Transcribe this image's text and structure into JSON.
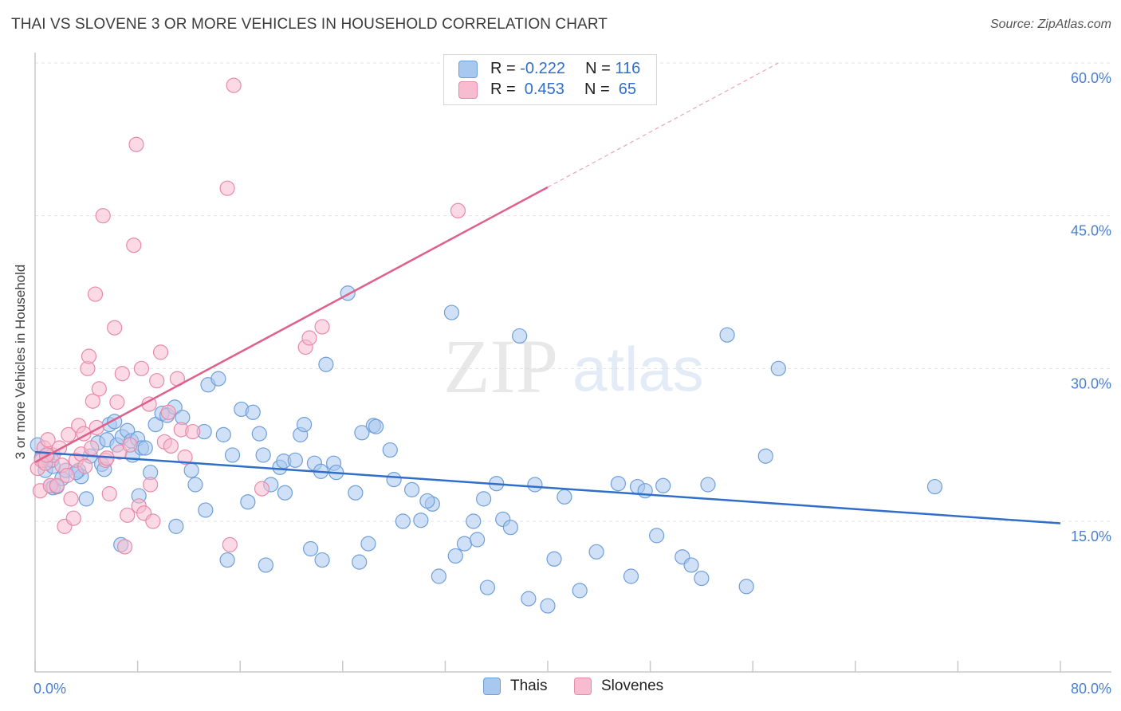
{
  "header": {
    "title": "THAI VS SLOVENE 3 OR MORE VEHICLES IN HOUSEHOLD CORRELATION CHART",
    "source": "Source: ZipAtlas.com"
  },
  "watermark": {
    "zip": "ZIP",
    "atlas": "atlas"
  },
  "legend": {
    "rows": [
      {
        "r_label": "R =",
        "r_value": "-0.222",
        "n_label": "N =",
        "n_value": "116",
        "color": "#a9c8f0",
        "border": "#6f9fd8"
      },
      {
        "r_label": "R =",
        "r_value": " 0.453",
        "n_label": "N =",
        "n_value": " 65",
        "color": "#f7bcd0",
        "border": "#e88aa8"
      }
    ]
  },
  "bottom_legend": {
    "items": [
      {
        "label": "Thais"
      },
      {
        "label": "Slovenes"
      }
    ]
  },
  "colors": {
    "thai_fill": "#a9c8f0",
    "thai_stroke": "#6f9fd8",
    "thai_line": "#2f6fc9",
    "slovene_fill": "#f7bcd0",
    "slovene_stroke": "#e88aa8",
    "slovene_line": "#e0608a",
    "tick_text": "#4a7fd0"
  },
  "chart_data": {
    "type": "scatter",
    "title": "THAI VS SLOVENE 3 OR MORE VEHICLES IN HOUSEHOLD CORRELATION CHART",
    "xlabel": "",
    "ylabel": "3 or more Vehicles in Household",
    "xlim": [
      0,
      80
    ],
    "ylim": [
      0,
      63
    ],
    "x_tick_labels": [
      "0.0%",
      "80.0%"
    ],
    "y_ticks": [
      15,
      30,
      45,
      60
    ],
    "y_tick_labels": [
      "15.0%",
      "30.0%",
      "45.0%",
      "60.0%"
    ],
    "grid": true,
    "legend_position": "top-center",
    "series": [
      {
        "name": "Thais",
        "R": -0.222,
        "N": 116,
        "trend": {
          "x": [
            0,
            80
          ],
          "y": [
            21.8,
            14.8
          ]
        },
        "points": [
          [
            0.2,
            22.5
          ],
          [
            0.5,
            21.2
          ],
          [
            0.8,
            20.0
          ],
          [
            1.0,
            21.5
          ],
          [
            1.2,
            18.5
          ],
          [
            1.4,
            18.3
          ],
          [
            1.7,
            18.4
          ],
          [
            2.1,
            19.2
          ],
          [
            2.4,
            20.0
          ],
          [
            3.4,
            20.0
          ],
          [
            3.6,
            19.4
          ],
          [
            4.0,
            17.2
          ],
          [
            4.3,
            21.4
          ],
          [
            4.9,
            22.7
          ],
          [
            5.2,
            20.6
          ],
          [
            5.4,
            20.1
          ],
          [
            5.6,
            23.0
          ],
          [
            5.8,
            24.5
          ],
          [
            6.2,
            24.8
          ],
          [
            6.4,
            22.5
          ],
          [
            6.8,
            23.3
          ],
          [
            7.2,
            23.9
          ],
          [
            7.5,
            22.9
          ],
          [
            7.6,
            21.5
          ],
          [
            8.0,
            23.1
          ],
          [
            8.3,
            22.2
          ],
          [
            8.6,
            22.2
          ],
          [
            9.0,
            19.8
          ],
          [
            9.4,
            24.5
          ],
          [
            9.9,
            25.6
          ],
          [
            10.3,
            25.4
          ],
          [
            10.9,
            26.2
          ],
          [
            11.5,
            25.2
          ],
          [
            12.2,
            20.0
          ],
          [
            12.5,
            18.6
          ],
          [
            13.2,
            23.8
          ],
          [
            13.5,
            28.4
          ],
          [
            14.3,
            29.0
          ],
          [
            14.7,
            23.5
          ],
          [
            15.4,
            21.5
          ],
          [
            16.1,
            26.0
          ],
          [
            17.0,
            25.7
          ],
          [
            17.5,
            23.6
          ],
          [
            17.8,
            21.5
          ],
          [
            18.4,
            18.6
          ],
          [
            19.1,
            20.3
          ],
          [
            19.4,
            20.9
          ],
          [
            19.5,
            17.8
          ],
          [
            20.3,
            21.0
          ],
          [
            20.7,
            23.5
          ],
          [
            21.0,
            24.5
          ],
          [
            21.5,
            12.3
          ],
          [
            21.8,
            20.7
          ],
          [
            22.3,
            19.9
          ],
          [
            22.4,
            11.2
          ],
          [
            22.7,
            30.4
          ],
          [
            23.3,
            20.7
          ],
          [
            24.4,
            37.4
          ],
          [
            25.0,
            17.8
          ],
          [
            25.5,
            23.7
          ],
          [
            26.0,
            12.8
          ],
          [
            26.4,
            24.4
          ],
          [
            26.6,
            24.3
          ],
          [
            28.0,
            19.1
          ],
          [
            28.7,
            15.0
          ],
          [
            29.4,
            18.1
          ],
          [
            30.1,
            15.1
          ],
          [
            31.0,
            16.7
          ],
          [
            32.5,
            35.5
          ],
          [
            32.8,
            11.6
          ],
          [
            33.5,
            12.8
          ],
          [
            34.2,
            15.0
          ],
          [
            35.0,
            17.2
          ],
          [
            35.3,
            8.5
          ],
          [
            36.0,
            18.7
          ],
          [
            36.5,
            15.2
          ],
          [
            37.1,
            14.4
          ],
          [
            37.8,
            33.2
          ],
          [
            38.5,
            7.4
          ],
          [
            39.0,
            18.6
          ],
          [
            40.0,
            6.7
          ],
          [
            40.5,
            11.3
          ],
          [
            41.3,
            17.4
          ],
          [
            42.5,
            8.2
          ],
          [
            45.5,
            18.7
          ],
          [
            46.5,
            9.6
          ],
          [
            47.0,
            18.4
          ],
          [
            47.6,
            18.0
          ],
          [
            49.0,
            18.5
          ],
          [
            50.5,
            11.5
          ],
          [
            51.2,
            10.7
          ],
          [
            52.0,
            9.4
          ],
          [
            52.5,
            18.6
          ],
          [
            54.0,
            33.3
          ],
          [
            55.5,
            8.6
          ],
          [
            57.0,
            21.4
          ],
          [
            58.0,
            30.0
          ],
          [
            70.2,
            18.4
          ],
          [
            1.4,
            20.4
          ],
          [
            3.2,
            19.8
          ],
          [
            6.7,
            12.7
          ],
          [
            8.1,
            17.5
          ],
          [
            11.0,
            14.5
          ],
          [
            13.3,
            16.1
          ],
          [
            15.0,
            11.2
          ],
          [
            18.0,
            10.7
          ],
          [
            25.3,
            11.0
          ],
          [
            30.6,
            17.0
          ],
          [
            34.5,
            13.2
          ],
          [
            16.6,
            16.9
          ],
          [
            23.5,
            19.8
          ],
          [
            27.7,
            22.0
          ],
          [
            31.5,
            9.6
          ],
          [
            43.8,
            12.0
          ],
          [
            48.5,
            13.6
          ],
          [
            1.3,
            21.0
          ]
        ]
      },
      {
        "name": "Slovenes",
        "R": 0.453,
        "N": 65,
        "trend": {
          "x": [
            0,
            40
          ],
          "y": [
            20.8,
            47.8
          ]
        },
        "trend_extension": {
          "x": [
            40,
            58
          ],
          "y": [
            47.8,
            60.0
          ]
        },
        "points": [
          [
            0.2,
            20.2
          ],
          [
            0.4,
            18.0
          ],
          [
            0.5,
            21.0
          ],
          [
            0.7,
            22.2
          ],
          [
            0.8,
            20.7
          ],
          [
            1.0,
            23.0
          ],
          [
            1.2,
            18.5
          ],
          [
            1.4,
            21.5
          ],
          [
            1.7,
            18.5
          ],
          [
            1.9,
            22.2
          ],
          [
            2.1,
            20.5
          ],
          [
            2.3,
            14.5
          ],
          [
            2.6,
            23.5
          ],
          [
            2.8,
            17.2
          ],
          [
            3.0,
            15.3
          ],
          [
            3.2,
            21.0
          ],
          [
            3.4,
            24.4
          ],
          [
            3.6,
            21.6
          ],
          [
            3.9,
            20.4
          ],
          [
            4.1,
            30.0
          ],
          [
            4.2,
            31.2
          ],
          [
            4.4,
            22.2
          ],
          [
            4.5,
            26.8
          ],
          [
            4.7,
            37.3
          ],
          [
            4.8,
            24.2
          ],
          [
            5.0,
            28.0
          ],
          [
            5.3,
            45.0
          ],
          [
            5.5,
            21.0
          ],
          [
            5.6,
            21.2
          ],
          [
            5.8,
            17.7
          ],
          [
            6.2,
            34.0
          ],
          [
            6.4,
            26.7
          ],
          [
            6.6,
            21.8
          ],
          [
            6.8,
            29.5
          ],
          [
            7.0,
            12.5
          ],
          [
            7.2,
            15.6
          ],
          [
            7.4,
            22.5
          ],
          [
            7.7,
            42.1
          ],
          [
            7.9,
            52.0
          ],
          [
            8.1,
            16.5
          ],
          [
            8.3,
            30.0
          ],
          [
            8.5,
            15.8
          ],
          [
            8.9,
            26.5
          ],
          [
            9.2,
            15.0
          ],
          [
            9.5,
            28.8
          ],
          [
            9.8,
            31.6
          ],
          [
            10.1,
            22.8
          ],
          [
            10.4,
            25.7
          ],
          [
            10.6,
            22.4
          ],
          [
            11.1,
            29.0
          ],
          [
            11.4,
            24.0
          ],
          [
            11.7,
            21.3
          ],
          [
            12.3,
            23.8
          ],
          [
            15.0,
            47.7
          ],
          [
            15.2,
            12.7
          ],
          [
            15.5,
            57.8
          ],
          [
            17.7,
            18.2
          ],
          [
            21.1,
            32.1
          ],
          [
            21.4,
            33.0
          ],
          [
            22.4,
            34.1
          ],
          [
            33.0,
            45.5
          ],
          [
            0.9,
            21.5
          ],
          [
            2.5,
            19.5
          ],
          [
            3.8,
            23.6
          ],
          [
            9.0,
            18.6
          ]
        ]
      }
    ]
  }
}
